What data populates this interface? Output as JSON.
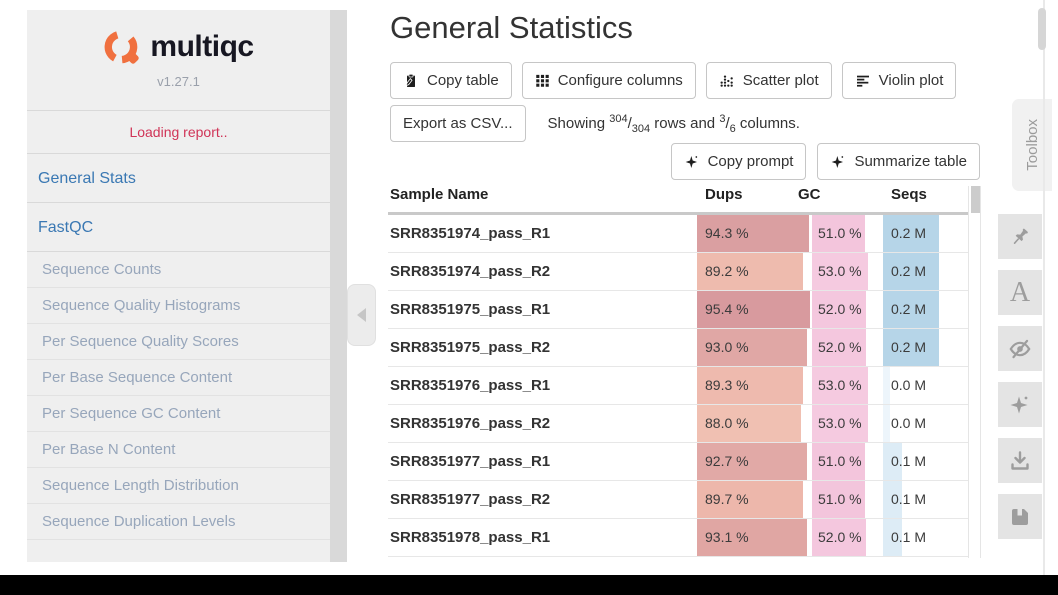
{
  "sidebar": {
    "logo_text": "multiqc",
    "version": "v1.27.1",
    "loading": "Loading report..",
    "items": [
      {
        "label": "General Stats",
        "level": "top"
      },
      {
        "label": "FastQC",
        "level": "top"
      },
      {
        "label": "Sequence Counts",
        "level": "sub"
      },
      {
        "label": "Sequence Quality Histograms",
        "level": "sub"
      },
      {
        "label": "Per Sequence Quality Scores",
        "level": "sub"
      },
      {
        "label": "Per Base Sequence Content",
        "level": "sub"
      },
      {
        "label": "Per Sequence GC Content",
        "level": "sub"
      },
      {
        "label": "Per Base N Content",
        "level": "sub"
      },
      {
        "label": "Sequence Length Distribution",
        "level": "sub"
      },
      {
        "label": "Sequence Duplication Levels",
        "level": "sub"
      }
    ]
  },
  "toolbox": {
    "tab_label": "Toolbox",
    "icons": [
      "pin-icon",
      "font-icon",
      "eye-slash-icon",
      "sparkle-icon",
      "download-icon",
      "save-icon"
    ]
  },
  "main": {
    "title": "General Statistics",
    "toolbar": {
      "copy_table": "Copy table",
      "configure_columns": "Configure columns",
      "scatter_plot": "Scatter plot",
      "violin_plot": "Violin plot",
      "export_csv": "Export as CSV...",
      "copy_prompt": "Copy prompt",
      "summarize_table": "Summarize table"
    },
    "showing": {
      "prefix": "Showing",
      "rows_shown": "304",
      "rows_total": "304",
      "frac_sep": "/",
      "middle": "rows and",
      "cols_shown": "3",
      "cols_total": "6",
      "suffix": "columns."
    },
    "table": {
      "headers": [
        "Sample Name",
        "Dups",
        "GC",
        "Seqs"
      ],
      "rows": [
        {
          "sample": "SRR8351974_pass_R1",
          "dups": {
            "text": "94.3 %",
            "width": 99,
            "color": "#da9fa1"
          },
          "gc": {
            "text": "51.0 %",
            "width": 78,
            "color": "#f3c5dc"
          },
          "seqs": {
            "text": "0.2 M",
            "width": 66,
            "color": "#b6d5e8"
          }
        },
        {
          "sample": "SRR8351974_pass_R2",
          "dups": {
            "text": "89.2 %",
            "width": 93.5,
            "color": "#eebbae"
          },
          "gc": {
            "text": "53.0 %",
            "width": 82,
            "color": "#f5cae0"
          },
          "seqs": {
            "text": "0.2 M",
            "width": 66,
            "color": "#b6d5e8"
          }
        },
        {
          "sample": "SRR8351975_pass_R1",
          "dups": {
            "text": "95.4 %",
            "width": 100,
            "color": "#d89a9e"
          },
          "gc": {
            "text": "52.0 %",
            "width": 80,
            "color": "#f4c7de"
          },
          "seqs": {
            "text": "0.2 M",
            "width": 66,
            "color": "#b6d5e8"
          }
        },
        {
          "sample": "SRR8351975_pass_R2",
          "dups": {
            "text": "93.0 %",
            "width": 97.5,
            "color": "#e0a7a5"
          },
          "gc": {
            "text": "52.0 %",
            "width": 80,
            "color": "#f4c7de"
          },
          "seqs": {
            "text": "0.2 M",
            "width": 66,
            "color": "#b6d5e8"
          }
        },
        {
          "sample": "SRR8351976_pass_R1",
          "dups": {
            "text": "89.3 %",
            "width": 93.6,
            "color": "#eebaae"
          },
          "gc": {
            "text": "53.0 %",
            "width": 82,
            "color": "#f5cae0"
          },
          "seqs": {
            "text": "0.0 M",
            "width": 8,
            "color": "#edf5fb"
          }
        },
        {
          "sample": "SRR8351976_pass_R2",
          "dups": {
            "text": "88.0 %",
            "width": 92.2,
            "color": "#f0c0b2"
          },
          "gc": {
            "text": "53.0 %",
            "width": 82,
            "color": "#f5cae0"
          },
          "seqs": {
            "text": "0.0 M",
            "width": 8,
            "color": "#edf5fb"
          }
        },
        {
          "sample": "SRR8351977_pass_R1",
          "dups": {
            "text": "92.7 %",
            "width": 97.2,
            "color": "#e1a9a6"
          },
          "gc": {
            "text": "51.0 %",
            "width": 78,
            "color": "#f3c5dc"
          },
          "seqs": {
            "text": "0.1 M",
            "width": 22,
            "color": "#ddecf6"
          }
        },
        {
          "sample": "SRR8351977_pass_R2",
          "dups": {
            "text": "89.7 %",
            "width": 94,
            "color": "#edb7ab"
          },
          "gc": {
            "text": "51.0 %",
            "width": 78,
            "color": "#f3c5dc"
          },
          "seqs": {
            "text": "0.1 M",
            "width": 22,
            "color": "#ddecf6"
          }
        },
        {
          "sample": "SRR8351978_pass_R1",
          "dups": {
            "text": "93.1 %",
            "width": 97.6,
            "color": "#e0a6a3"
          },
          "gc": {
            "text": "52.0 %",
            "width": 80,
            "color": "#f4c7de"
          },
          "seqs": {
            "text": "0.1 M",
            "width": 22,
            "color": "#ddecf6"
          }
        }
      ]
    }
  },
  "colors": {
    "accent_orange": "#f0703f",
    "link_blue": "#3a78b3",
    "sub_link_blue_gray": "#97a6bb",
    "loading_red": "#d03457",
    "dups_bar": "#d89a9e",
    "gc_bar": "#f3c6dd",
    "seqs_bar": "#b6d5e8"
  }
}
